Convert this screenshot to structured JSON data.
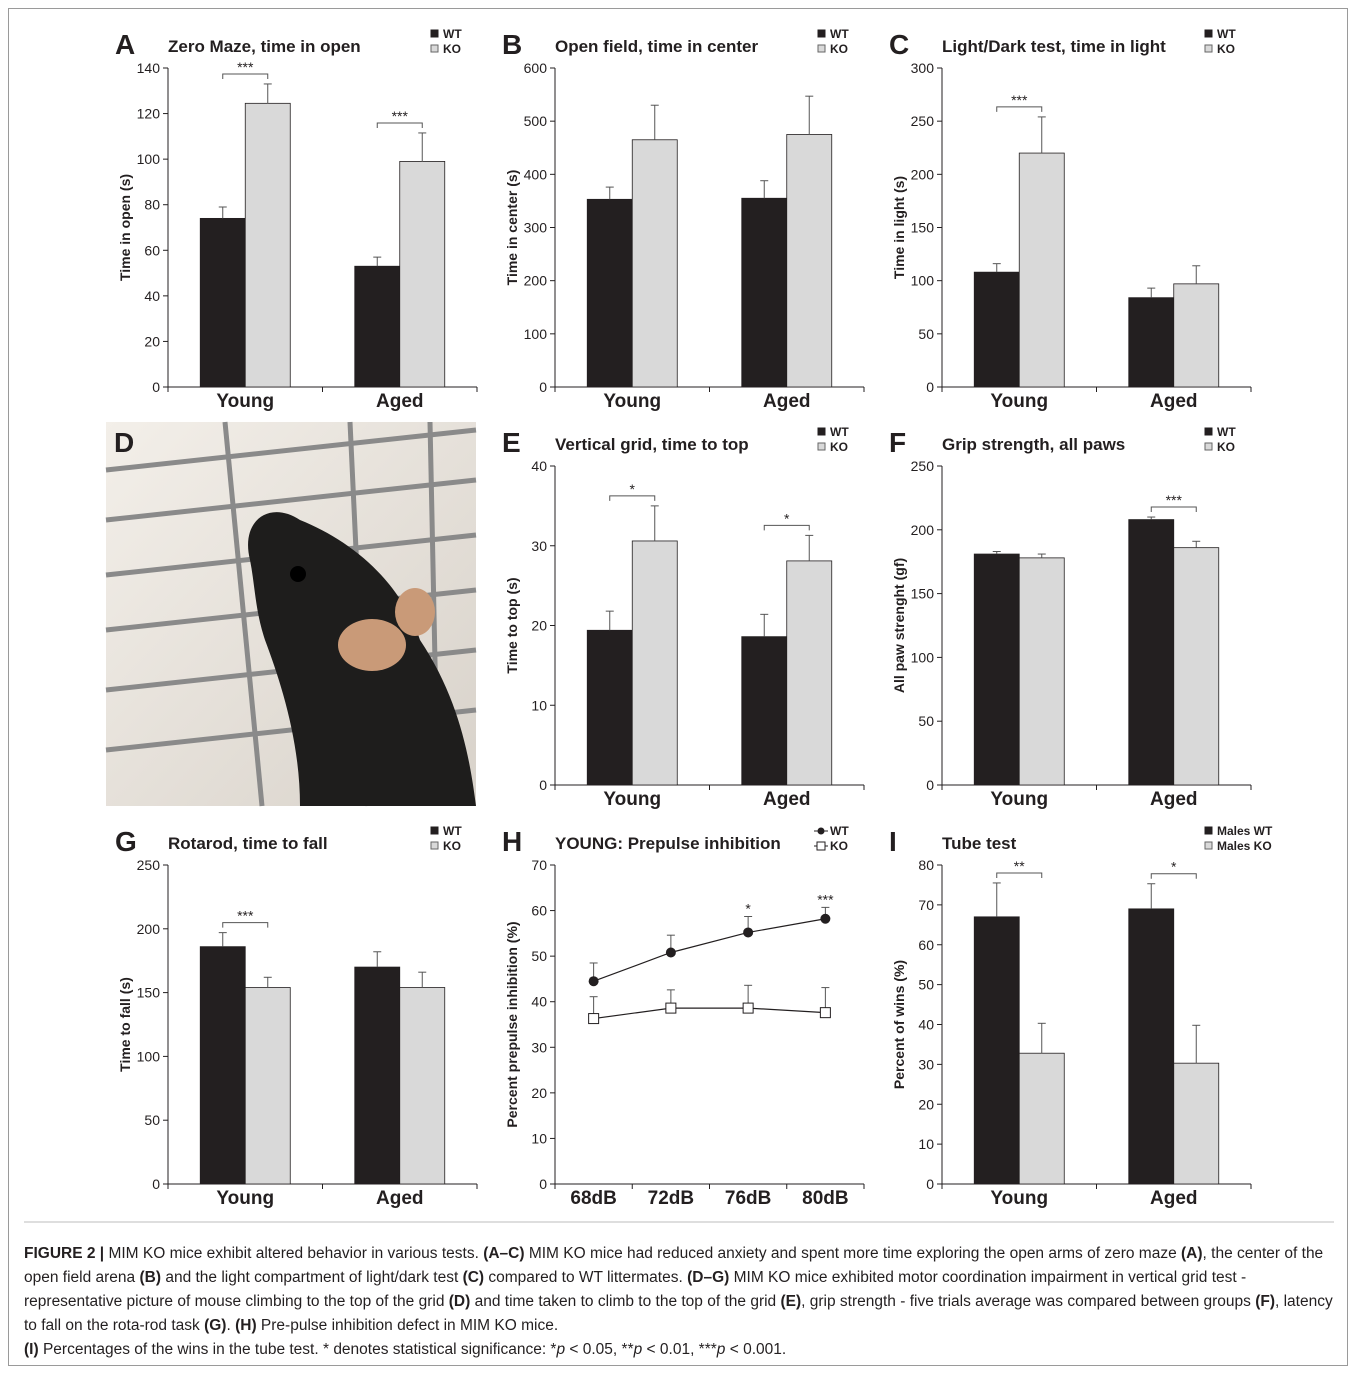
{
  "chart_data": [
    {
      "type": "bar",
      "panel_label": "A",
      "title": "Zero Maze, time in open",
      "y_label": "Time in open (s)",
      "categories": [
        "Young",
        "Aged"
      ],
      "ylim": [
        0,
        140
      ],
      "yticks": [
        0,
        20,
        40,
        60,
        80,
        100,
        120,
        140
      ],
      "series": [
        {
          "name": "WT",
          "color": "#231f20",
          "values": [
            74,
            53
          ],
          "errors": [
            5,
            4
          ]
        },
        {
          "name": "KO",
          "color": "#d9d9d9",
          "values": [
            124.5,
            99
          ],
          "errors": [
            8.5,
            12.5
          ]
        }
      ],
      "significance": [
        "***",
        "***"
      ]
    },
    {
      "type": "bar",
      "panel_label": "B",
      "title": "Open field, time in center",
      "y_label": "Time in center (s)",
      "categories": [
        "Young",
        "Aged"
      ],
      "ylim": [
        0,
        600
      ],
      "yticks": [
        0,
        100,
        200,
        300,
        400,
        500,
        600
      ],
      "series": [
        {
          "name": "WT",
          "color": "#231f20",
          "values": [
            353,
            355
          ],
          "errors": [
            23,
            33
          ]
        },
        {
          "name": "KO",
          "color": "#d9d9d9",
          "values": [
            465,
            475
          ],
          "errors": [
            65,
            72
          ]
        }
      ],
      "significance": [
        null,
        null
      ]
    },
    {
      "type": "bar",
      "panel_label": "C",
      "title": "Light/Dark test, time in light",
      "y_label": "Time in light (s)",
      "categories": [
        "Young",
        "Aged"
      ],
      "ylim": [
        0,
        300
      ],
      "yticks": [
        0,
        50,
        100,
        150,
        200,
        250,
        300
      ],
      "series": [
        {
          "name": "WT",
          "color": "#231f20",
          "values": [
            108,
            84
          ],
          "errors": [
            8,
            9
          ]
        },
        {
          "name": "KO",
          "color": "#d9d9d9",
          "values": [
            220,
            97
          ],
          "errors": [
            34,
            17
          ]
        }
      ],
      "significance": [
        "***",
        null
      ]
    },
    {
      "type": "bar",
      "panel_label": "E",
      "title": "Vertical grid, time to top",
      "y_label": "Time to top (s)",
      "categories": [
        "Young",
        "Aged"
      ],
      "ylim": [
        0,
        40
      ],
      "yticks": [
        0,
        10,
        20,
        30,
        40
      ],
      "series": [
        {
          "name": "WT",
          "color": "#231f20",
          "values": [
            19.4,
            18.6
          ],
          "errors": [
            2.4,
            2.8
          ]
        },
        {
          "name": "KO",
          "color": "#d9d9d9",
          "values": [
            30.6,
            28.1
          ],
          "errors": [
            4.4,
            3.2
          ]
        }
      ],
      "significance": [
        "*",
        "*"
      ]
    },
    {
      "type": "bar",
      "panel_label": "F",
      "title": "Grip strength, all paws",
      "y_label": "All paw strenght (gf)",
      "categories": [
        "Young",
        "Aged"
      ],
      "ylim": [
        0,
        250
      ],
      "yticks": [
        0,
        50,
        100,
        150,
        200,
        250
      ],
      "series": [
        {
          "name": "WT",
          "color": "#231f20",
          "values": [
            181,
            208
          ],
          "errors": [
            2,
            2
          ]
        },
        {
          "name": "KO",
          "color": "#d9d9d9",
          "values": [
            178,
            186
          ],
          "errors": [
            3,
            5
          ]
        }
      ],
      "significance": [
        null,
        "***"
      ]
    },
    {
      "type": "bar",
      "panel_label": "G",
      "title": "Rotarod, time to fall",
      "y_label": "Time to fall (s)",
      "categories": [
        "Young",
        "Aged"
      ],
      "ylim": [
        0,
        250
      ],
      "yticks": [
        0,
        50,
        100,
        150,
        200,
        250
      ],
      "series": [
        {
          "name": "WT",
          "color": "#231f20",
          "values": [
            186,
            170
          ],
          "errors": [
            11,
            12
          ]
        },
        {
          "name": "KO",
          "color": "#d9d9d9",
          "values": [
            154,
            154
          ],
          "errors": [
            8,
            12
          ]
        }
      ],
      "significance": [
        "***",
        null
      ]
    },
    {
      "type": "line",
      "panel_label": "H",
      "title": "YOUNG: Prepulse inhibition",
      "y_label": "Percent prepulse inhibition (%)",
      "categories": [
        "68dB",
        "72dB",
        "76dB",
        "80dB"
      ],
      "ylim": [
        0,
        70
      ],
      "yticks": [
        0,
        10,
        20,
        30,
        40,
        50,
        60,
        70
      ],
      "series": [
        {
          "name": "WT",
          "color": "#231f20",
          "values": [
            44.5,
            50.8,
            55.2,
            58.2
          ],
          "errors": [
            4,
            3.8,
            3.5,
            2.5
          ]
        },
        {
          "name": "KO",
          "color": "#ffffff",
          "values": [
            36.3,
            38.6,
            38.6,
            37.6
          ],
          "errors": [
            4.8,
            4,
            5,
            5.5
          ]
        }
      ],
      "significance": [
        null,
        null,
        "*",
        "***"
      ]
    },
    {
      "type": "bar",
      "panel_label": "I",
      "title": "Tube test",
      "y_label": "Percent of wins (%)",
      "categories": [
        "Young",
        "Aged"
      ],
      "ylim": [
        0,
        80
      ],
      "yticks": [
        0,
        10,
        20,
        30,
        40,
        50,
        60,
        70,
        80
      ],
      "series": [
        {
          "name": "Males WT",
          "color": "#231f20",
          "values": [
            67,
            69
          ],
          "errors": [
            8.5,
            6.3
          ]
        },
        {
          "name": "Males KO",
          "color": "#d9d9d9",
          "values": [
            32.8,
            30.3
          ],
          "errors": [
            7.5,
            9.5
          ]
        }
      ],
      "significance": [
        "**",
        "*"
      ]
    }
  ],
  "photo": {
    "panel_label": "D"
  },
  "caption": {
    "parts": [
      "FIGURE 2 |",
      " MIM KO mice exhibit altered behavior in various tests. ",
      "(A–C)",
      " MIM KO mice had reduced anxiety and spent more time exploring the open arms of zero maze ",
      "(A)",
      ", the center of the open field arena ",
      "(B)",
      " and the light compartment of light/dark test ",
      "(C)",
      " compared to WT littermates. ",
      "(D–G)",
      " MIM KO mice exhibited motor coordination impairment in vertical grid test - representative picture of mouse climbing to the top of the grid ",
      "(D)",
      " and time taken to climb to the top of the grid ",
      "(E)",
      ", grip strength - five trials average was compared between groups ",
      "(F)",
      ", latency to fall on the rota-rod task ",
      "(G)",
      ". ",
      "(H)",
      " Pre-pulse inhibition defect in MIM KO mice.",
      "(I)",
      " Percentages of the wins in the tube test. * denotes statistical significance: *",
      "p",
      " < 0.05, **",
      "p",
      " < 0.01, ***",
      "p",
      " < 0.001."
    ]
  }
}
